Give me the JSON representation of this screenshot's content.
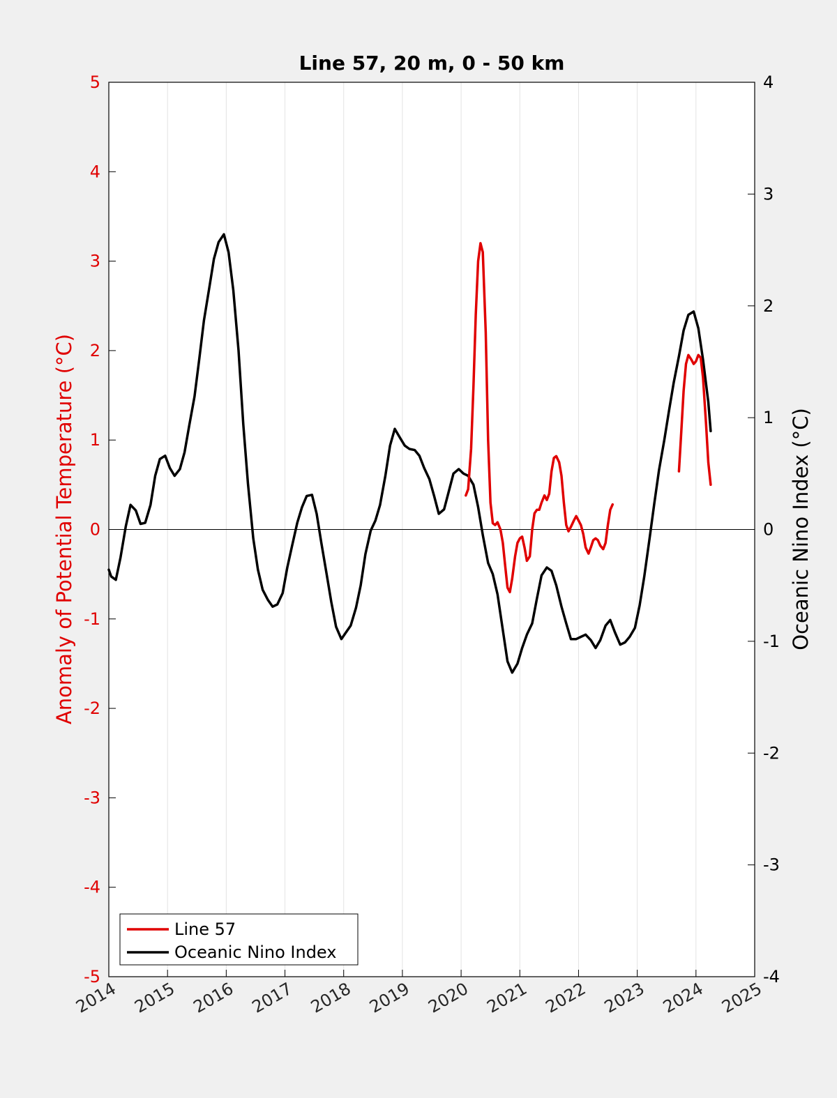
{
  "chart_data": {
    "type": "line",
    "title": "Line 57, 20 m, 0 - 50 km",
    "xlabel": "",
    "ylabel_left": "Anomaly of Potential Temperature (°C)",
    "ylabel_right": "Oceanic Nino Index (°C)",
    "xlim": [
      2014,
      2025
    ],
    "ylim_left": [
      -5,
      5
    ],
    "ylim_right": [
      -4,
      4
    ],
    "x_ticks": [
      "2014",
      "2015",
      "2016",
      "2017",
      "2018",
      "2019",
      "2020",
      "2021",
      "2022",
      "2023",
      "2024",
      "2025"
    ],
    "y_ticks_left": [
      "5",
      "4",
      "3",
      "2",
      "1",
      "0",
      "-1",
      "-2",
      "-3",
      "-4",
      "-5"
    ],
    "y_ticks_right": [
      "4",
      "3",
      "2",
      "1",
      "0",
      "-1",
      "-2",
      "-3",
      "-4"
    ],
    "vertical_grid": true,
    "zero_line": true,
    "legend_position": "bottom-left",
    "colors": {
      "line57": "#e00000",
      "oni": "#000000",
      "left_axis": "#e00000",
      "right_axis": "#000000"
    },
    "series": [
      {
        "name": "Line 57",
        "axis": "left",
        "color": "#e00000",
        "segments": [
          [
            [
              2020.08,
              0.38
            ],
            [
              2020.12,
              0.45
            ],
            [
              2020.17,
              0.9
            ],
            [
              2020.21,
              1.6
            ],
            [
              2020.25,
              2.4
            ],
            [
              2020.29,
              3.0
            ],
            [
              2020.33,
              3.2
            ],
            [
              2020.37,
              3.1
            ],
            [
              2020.42,
              2.2
            ],
            [
              2020.46,
              1.0
            ],
            [
              2020.5,
              0.3
            ],
            [
              2020.54,
              0.07
            ],
            [
              2020.58,
              0.05
            ],
            [
              2020.62,
              0.08
            ],
            [
              2020.67,
              0.0
            ],
            [
              2020.71,
              -0.15
            ],
            [
              2020.75,
              -0.4
            ],
            [
              2020.79,
              -0.65
            ],
            [
              2020.83,
              -0.7
            ],
            [
              2020.87,
              -0.55
            ],
            [
              2020.92,
              -0.3
            ],
            [
              2020.96,
              -0.15
            ],
            [
              2021.0,
              -0.1
            ],
            [
              2021.04,
              -0.08
            ],
            [
              2021.08,
              -0.2
            ],
            [
              2021.12,
              -0.35
            ],
            [
              2021.17,
              -0.3
            ],
            [
              2021.21,
              0.0
            ],
            [
              2021.25,
              0.18
            ],
            [
              2021.29,
              0.22
            ],
            [
              2021.33,
              0.22
            ],
            [
              2021.37,
              0.3
            ],
            [
              2021.42,
              0.38
            ],
            [
              2021.46,
              0.33
            ],
            [
              2021.5,
              0.4
            ],
            [
              2021.54,
              0.65
            ],
            [
              2021.58,
              0.8
            ],
            [
              2021.62,
              0.82
            ],
            [
              2021.67,
              0.75
            ],
            [
              2021.71,
              0.6
            ],
            [
              2021.75,
              0.3
            ],
            [
              2021.79,
              0.05
            ],
            [
              2021.83,
              -0.02
            ],
            [
              2021.87,
              0.03
            ],
            [
              2021.92,
              0.1
            ],
            [
              2021.96,
              0.15
            ],
            [
              2022.0,
              0.1
            ],
            [
              2022.04,
              0.05
            ],
            [
              2022.08,
              -0.05
            ],
            [
              2022.12,
              -0.2
            ],
            [
              2022.17,
              -0.27
            ],
            [
              2022.21,
              -0.2
            ],
            [
              2022.25,
              -0.12
            ],
            [
              2022.29,
              -0.1
            ],
            [
              2022.33,
              -0.12
            ],
            [
              2022.37,
              -0.18
            ],
            [
              2022.42,
              -0.22
            ],
            [
              2022.46,
              -0.15
            ],
            [
              2022.5,
              0.05
            ],
            [
              2022.54,
              0.22
            ],
            [
              2022.58,
              0.28
            ]
          ],
          [
            [
              2023.71,
              0.65
            ],
            [
              2023.75,
              1.1
            ],
            [
              2023.79,
              1.55
            ],
            [
              2023.83,
              1.85
            ],
            [
              2023.87,
              1.95
            ],
            [
              2023.92,
              1.9
            ],
            [
              2023.96,
              1.85
            ],
            [
              2024.0,
              1.88
            ],
            [
              2024.04,
              1.95
            ],
            [
              2024.08,
              1.92
            ],
            [
              2024.12,
              1.7
            ],
            [
              2024.17,
              1.2
            ],
            [
              2024.21,
              0.75
            ],
            [
              2024.25,
              0.5
            ]
          ]
        ]
      },
      {
        "name": "Oceanic Nino Index",
        "axis": "right",
        "color": "#000000",
        "segments": [
          [
            [
              2014.0,
              -0.36
            ],
            [
              2014.04,
              -0.42
            ],
            [
              2014.12,
              -0.45
            ],
            [
              2014.2,
              -0.25
            ],
            [
              2014.29,
              0.03
            ],
            [
              2014.37,
              0.22
            ],
            [
              2014.46,
              0.17
            ],
            [
              2014.54,
              0.05
            ],
            [
              2014.62,
              0.06
            ],
            [
              2014.71,
              0.22
            ],
            [
              2014.79,
              0.48
            ],
            [
              2014.87,
              0.63
            ],
            [
              2014.96,
              0.66
            ],
            [
              2015.04,
              0.55
            ],
            [
              2015.12,
              0.48
            ],
            [
              2015.21,
              0.54
            ],
            [
              2015.29,
              0.69
            ],
            [
              2015.37,
              0.93
            ],
            [
              2015.46,
              1.19
            ],
            [
              2015.54,
              1.52
            ],
            [
              2015.62,
              1.87
            ],
            [
              2015.71,
              2.16
            ],
            [
              2015.79,
              2.42
            ],
            [
              2015.87,
              2.57
            ],
            [
              2015.96,
              2.64
            ],
            [
              2016.04,
              2.48
            ],
            [
              2016.12,
              2.14
            ],
            [
              2016.21,
              1.6
            ],
            [
              2016.29,
              0.94
            ],
            [
              2016.37,
              0.41
            ],
            [
              2016.46,
              -0.08
            ],
            [
              2016.54,
              -0.36
            ],
            [
              2016.62,
              -0.54
            ],
            [
              2016.71,
              -0.63
            ],
            [
              2016.79,
              -0.69
            ],
            [
              2016.87,
              -0.67
            ],
            [
              2016.96,
              -0.57
            ],
            [
              2017.04,
              -0.34
            ],
            [
              2017.12,
              -0.15
            ],
            [
              2017.21,
              0.06
            ],
            [
              2017.29,
              0.2
            ],
            [
              2017.37,
              0.3
            ],
            [
              2017.46,
              0.31
            ],
            [
              2017.54,
              0.14
            ],
            [
              2017.62,
              -0.12
            ],
            [
              2017.71,
              -0.4
            ],
            [
              2017.79,
              -0.65
            ],
            [
              2017.87,
              -0.87
            ],
            [
              2017.96,
              -0.98
            ],
            [
              2018.04,
              -0.92
            ],
            [
              2018.12,
              -0.86
            ],
            [
              2018.21,
              -0.7
            ],
            [
              2018.29,
              -0.5
            ],
            [
              2018.37,
              -0.22
            ],
            [
              2018.46,
              -0.01
            ],
            [
              2018.54,
              0.08
            ],
            [
              2018.62,
              0.22
            ],
            [
              2018.71,
              0.48
            ],
            [
              2018.79,
              0.75
            ],
            [
              2018.87,
              0.9
            ],
            [
              2018.96,
              0.82
            ],
            [
              2019.04,
              0.75
            ],
            [
              2019.12,
              0.72
            ],
            [
              2019.21,
              0.71
            ],
            [
              2019.29,
              0.66
            ],
            [
              2019.37,
              0.55
            ],
            [
              2019.46,
              0.45
            ],
            [
              2019.54,
              0.3
            ],
            [
              2019.62,
              0.14
            ],
            [
              2019.71,
              0.18
            ],
            [
              2019.79,
              0.34
            ],
            [
              2019.87,
              0.5
            ],
            [
              2019.96,
              0.54
            ],
            [
              2020.04,
              0.5
            ],
            [
              2020.12,
              0.48
            ],
            [
              2020.21,
              0.4
            ],
            [
              2020.29,
              0.2
            ],
            [
              2020.37,
              -0.05
            ],
            [
              2020.46,
              -0.3
            ],
            [
              2020.54,
              -0.4
            ],
            [
              2020.62,
              -0.58
            ],
            [
              2020.71,
              -0.9
            ],
            [
              2020.79,
              -1.18
            ],
            [
              2020.87,
              -1.28
            ],
            [
              2020.96,
              -1.2
            ],
            [
              2021.04,
              -1.06
            ],
            [
              2021.12,
              -0.94
            ],
            [
              2021.21,
              -0.84
            ],
            [
              2021.29,
              -0.62
            ],
            [
              2021.37,
              -0.41
            ],
            [
              2021.46,
              -0.34
            ],
            [
              2021.54,
              -0.37
            ],
            [
              2021.62,
              -0.5
            ],
            [
              2021.71,
              -0.69
            ],
            [
              2021.79,
              -0.84
            ],
            [
              2021.87,
              -0.98
            ],
            [
              2021.96,
              -0.98
            ],
            [
              2022.04,
              -0.96
            ],
            [
              2022.12,
              -0.94
            ],
            [
              2022.21,
              -0.99
            ],
            [
              2022.29,
              -1.06
            ],
            [
              2022.37,
              -0.99
            ],
            [
              2022.46,
              -0.86
            ],
            [
              2022.54,
              -0.81
            ],
            [
              2022.62,
              -0.92
            ],
            [
              2022.71,
              -1.03
            ],
            [
              2022.79,
              -1.01
            ],
            [
              2022.87,
              -0.96
            ],
            [
              2022.96,
              -0.88
            ],
            [
              2023.04,
              -0.68
            ],
            [
              2023.12,
              -0.42
            ],
            [
              2023.21,
              -0.08
            ],
            [
              2023.29,
              0.23
            ],
            [
              2023.37,
              0.53
            ],
            [
              2023.46,
              0.8
            ],
            [
              2023.54,
              1.06
            ],
            [
              2023.62,
              1.31
            ],
            [
              2023.71,
              1.55
            ],
            [
              2023.79,
              1.78
            ],
            [
              2023.87,
              1.92
            ],
            [
              2023.96,
              1.95
            ],
            [
              2024.04,
              1.8
            ],
            [
              2024.12,
              1.52
            ],
            [
              2024.21,
              1.14
            ],
            [
              2024.25,
              0.88
            ]
          ]
        ]
      }
    ]
  }
}
